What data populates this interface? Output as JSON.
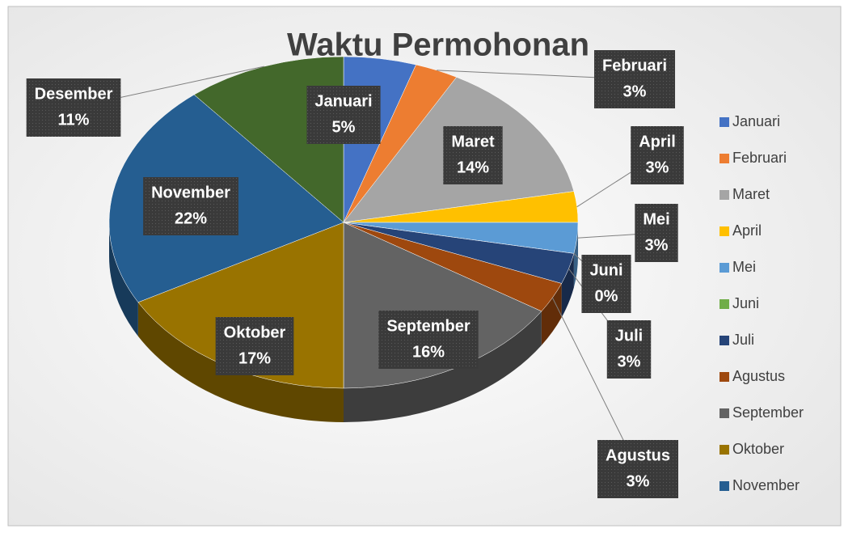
{
  "chart_data": {
    "type": "pie",
    "title": "Waktu Permohonan",
    "categories": [
      "Januari",
      "Februari",
      "Maret",
      "April",
      "Mei",
      "Juni",
      "Juli",
      "Agustus",
      "September",
      "Oktober",
      "November",
      "Desember"
    ],
    "values": [
      5,
      3,
      14,
      3,
      3,
      0,
      3,
      3,
      16,
      17,
      22,
      11
    ],
    "value_labels": [
      "5%",
      "3%",
      "14%",
      "3%",
      "3%",
      "0%",
      "3%",
      "3%",
      "16%",
      "17%",
      "22%",
      "11%"
    ],
    "colors": [
      "#4472c4",
      "#ed7d31",
      "#a5a5a5",
      "#ffc000",
      "#5b9bd5",
      "#70ad47",
      "#264478",
      "#9e480e",
      "#636363",
      "#997300",
      "#255e91",
      "#43682b"
    ]
  }
}
